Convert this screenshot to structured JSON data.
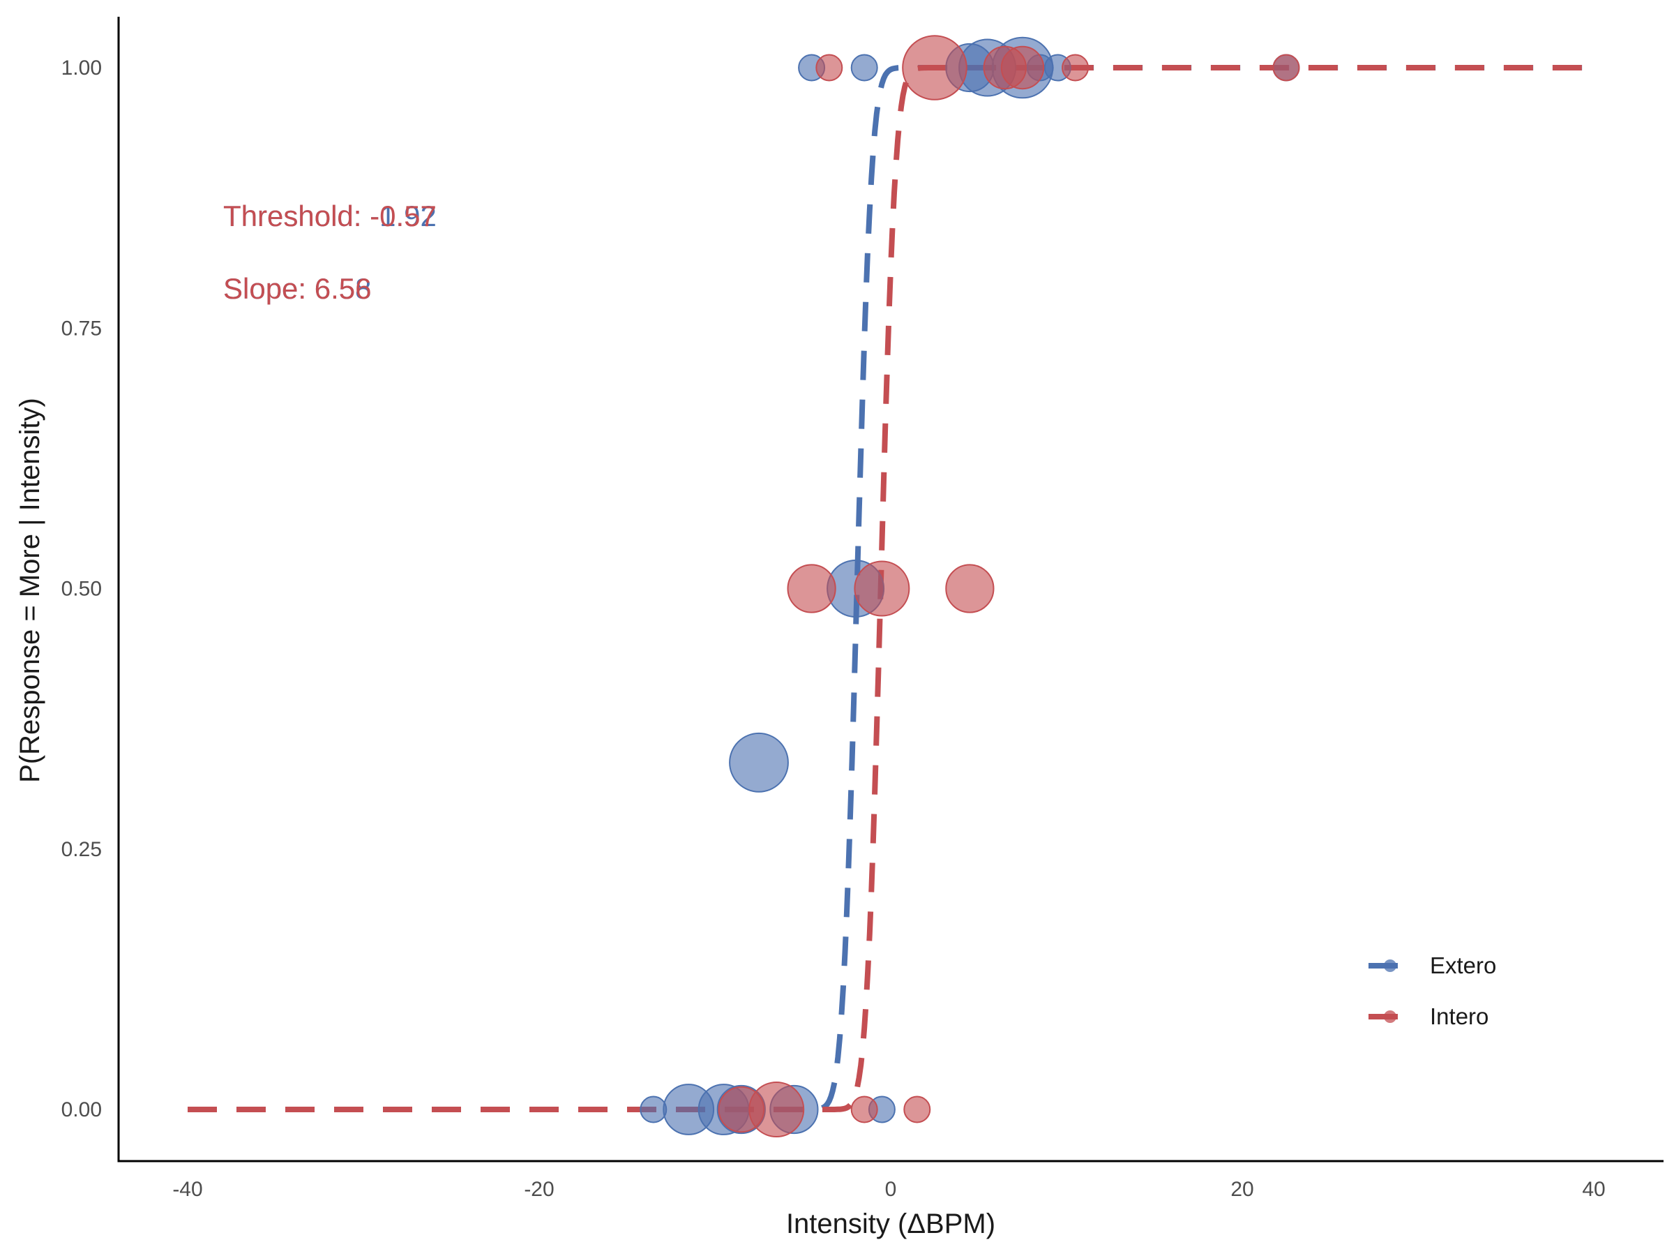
{
  "chart_data": {
    "type": "scatter",
    "xlabel": "Intensity (ΔBPM)",
    "ylabel": "P(Response = More | Intensity)",
    "xlim": [
      -44,
      44
    ],
    "ylim": [
      -0.05,
      1.05
    ],
    "xticks": [
      -40,
      -20,
      0,
      20,
      40
    ],
    "yticks": [
      0.0,
      0.25,
      0.5,
      0.75,
      1.0
    ],
    "xtick_labels": [
      "-40",
      "-20",
      "0",
      "20",
      "40"
    ],
    "ytick_labels": [
      "0.00",
      "0.25",
      "0.50",
      "0.75",
      "1.00"
    ],
    "grid": false,
    "legend_position": "bottom-right",
    "legend": [
      {
        "label": "Extero",
        "color": "#4c72b0"
      },
      {
        "label": "Intero",
        "color": "#c44e52"
      }
    ],
    "annotations": [
      {
        "text": "Threshold: -1.92",
        "color": "#4c72b0"
      },
      {
        "text": "Threshold: -0.57",
        "color": "#c44e52"
      },
      {
        "text": "Slope: 6.58",
        "color": "#4c72b0"
      },
      {
        "text": "Slope: 6.56",
        "color": "#c44e52"
      }
    ],
    "series": [
      {
        "name": "Extero",
        "color": "#4c72b0",
        "threshold": -1.92,
        "slope": 6.58,
        "points": [
          {
            "x": -13.5,
            "y": 0,
            "n": 1
          },
          {
            "x": -11.5,
            "y": 0,
            "n": 8
          },
          {
            "x": -9.5,
            "y": 0,
            "n": 8
          },
          {
            "x": -8.5,
            "y": 0,
            "n": 7
          },
          {
            "x": -5.5,
            "y": 0,
            "n": 7
          },
          {
            "x": -0.5,
            "y": 0,
            "n": 1
          },
          {
            "x": -7.5,
            "y": 0.333,
            "n": 12
          },
          {
            "x": -2,
            "y": 0.5,
            "n": 11
          },
          {
            "x": -4.5,
            "y": 1,
            "n": 1
          },
          {
            "x": -1.5,
            "y": 1,
            "n": 1
          },
          {
            "x": 4.5,
            "y": 1,
            "n": 7
          },
          {
            "x": 5.5,
            "y": 1,
            "n": 11
          },
          {
            "x": 7.5,
            "y": 1,
            "n": 13
          },
          {
            "x": 8.5,
            "y": 1,
            "n": 1
          },
          {
            "x": 9.5,
            "y": 1,
            "n": 1
          },
          {
            "x": 22.5,
            "y": 1,
            "n": 1
          }
        ]
      },
      {
        "name": "Intero",
        "color": "#c44e52",
        "threshold": -0.57,
        "slope": 6.56,
        "points": [
          {
            "x": -8.5,
            "y": 0,
            "n": 6
          },
          {
            "x": -6.5,
            "y": 0,
            "n": 10
          },
          {
            "x": -1.5,
            "y": 0,
            "n": 1
          },
          {
            "x": 1.5,
            "y": 0,
            "n": 1
          },
          {
            "x": -4.5,
            "y": 0.5,
            "n": 7
          },
          {
            "x": -0.5,
            "y": 0.5,
            "n": 10
          },
          {
            "x": 4.5,
            "y": 0.5,
            "n": 7
          },
          {
            "x": -3.5,
            "y": 1,
            "n": 1
          },
          {
            "x": 2.5,
            "y": 1,
            "n": 15
          },
          {
            "x": 6.5,
            "y": 1,
            "n": 5
          },
          {
            "x": 7.5,
            "y": 1,
            "n": 5
          },
          {
            "x": 10.5,
            "y": 1,
            "n": 1
          },
          {
            "x": 22.5,
            "y": 1,
            "n": 1
          }
        ]
      }
    ],
    "curve_x_range": [
      -40,
      40
    ]
  }
}
